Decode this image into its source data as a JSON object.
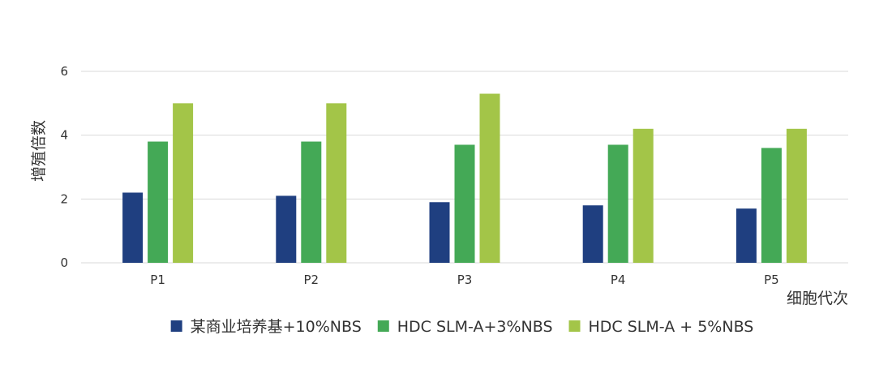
{
  "chart_data": {
    "type": "bar",
    "title": "",
    "xlabel": "细胞代次",
    "ylabel": "增殖倍数",
    "categories": [
      "P1",
      "P2",
      "P3",
      "P4",
      "P5"
    ],
    "yticks": [
      "0",
      "2",
      "4",
      "6"
    ],
    "ylim": [
      0,
      6
    ],
    "grid": true,
    "legend_position": "bottom",
    "series": [
      {
        "name": "某商业培养基+10%NBS",
        "color": "#1f3f80",
        "values": [
          2.2,
          2.1,
          1.9,
          1.8,
          1.7
        ]
      },
      {
        "name": "HDC SLM-A+3%NBS",
        "color": "#44a956",
        "values": [
          3.8,
          3.8,
          3.7,
          3.7,
          3.6
        ]
      },
      {
        "name": "HDC SLM-A + 5%NBS",
        "color": "#a3c548",
        "values": [
          5.0,
          5.0,
          5.3,
          4.2,
          4.2
        ]
      }
    ]
  }
}
